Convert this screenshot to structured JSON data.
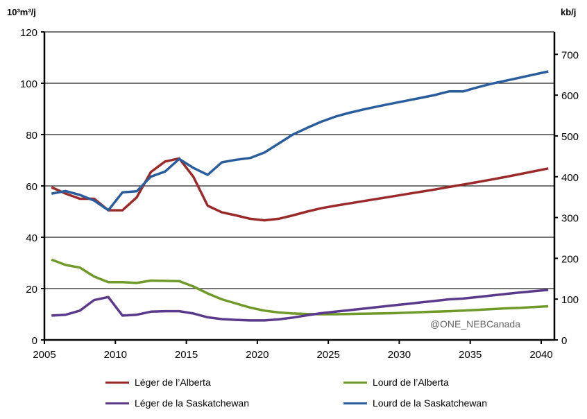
{
  "chart_data": {
    "type": "line",
    "ylabel_left": "10³m³/j",
    "ylabel_right": "kb/j",
    "ylim": [
      0,
      120
    ],
    "yticks": [
      0,
      20,
      40,
      60,
      80,
      100,
      120
    ],
    "ylim_right": [
      0,
      755
    ],
    "yticks_right": [
      0,
      100,
      200,
      300,
      400,
      500,
      600,
      700
    ],
    "xticks": [
      2005,
      2010,
      2015,
      2020,
      2025,
      2030,
      2035,
      2040
    ],
    "grid": "horizontal",
    "legend_position": "bottom",
    "watermark": "@ONE_NEBCanada",
    "x": [
      2005,
      2006,
      2007,
      2008,
      2009,
      2010,
      2011,
      2012,
      2013,
      2014,
      2015,
      2016,
      2017,
      2018,
      2019,
      2020,
      2021,
      2022,
      2023,
      2024,
      2025,
      2026,
      2027,
      2028,
      2029,
      2030,
      2031,
      2032,
      2033,
      2034,
      2035,
      2036,
      2037,
      2038,
      2039,
      2040
    ],
    "series": [
      {
        "name": "Léger de l’Alberta",
        "color": "#9b2a2a",
        "values": [
          59.5,
          57,
          55,
          55,
          50.5,
          50.5,
          55.5,
          65.4,
          69.5,
          70.7,
          63.5,
          52.3,
          49.7,
          48.5,
          47.2,
          46.6,
          47.2,
          48.5,
          50,
          51.3,
          52.3,
          53.2,
          54.1,
          55,
          55.9,
          56.8,
          57.7,
          58.6,
          59.6,
          60.5,
          61.5,
          62.5,
          63.5,
          64.6,
          65.7,
          66.8
        ]
      },
      {
        "name": "Lourd de l’Alberta",
        "color": "#6f9a2a",
        "values": [
          31.3,
          29.2,
          28.2,
          24.7,
          22.5,
          22.5,
          22.2,
          23.1,
          23,
          22.9,
          20.8,
          18.1,
          15.8,
          14.2,
          12.6,
          11.4,
          10.7,
          10.3,
          10.1,
          10,
          10,
          10.1,
          10.2,
          10.3,
          10.4,
          10.6,
          10.8,
          11,
          11.2,
          11.4,
          11.7,
          12,
          12.3,
          12.5,
          12.8,
          13.1
        ]
      },
      {
        "name": "Léger de la Saskatchewan",
        "color": "#5b3a8c",
        "values": [
          9.5,
          9.8,
          11.4,
          15.5,
          16.7,
          9.5,
          9.8,
          11,
          11.2,
          11.2,
          10.3,
          8.8,
          8.1,
          7.8,
          7.6,
          7.6,
          8,
          8.7,
          9.6,
          10.4,
          11,
          11.6,
          12.2,
          12.8,
          13.4,
          14,
          14.6,
          15.2,
          15.8,
          16.1,
          16.7,
          17.3,
          17.9,
          18.5,
          19,
          19.5
        ]
      },
      {
        "name": "Lourd de la Saskatchewan",
        "color": "#2a5d9b",
        "values": [
          57,
          58,
          56.5,
          54.3,
          50.5,
          57.5,
          57.9,
          63.6,
          65.6,
          70.5,
          67,
          64.3,
          69.2,
          70.2,
          70.9,
          73,
          76.5,
          80,
          82.6,
          85,
          87,
          88.5,
          89.8,
          91,
          92.1,
          93.2,
          94.3,
          95.4,
          96.8,
          96.8,
          98.4,
          99.8,
          101,
          102.2,
          103.4,
          104.6
        ]
      }
    ]
  }
}
